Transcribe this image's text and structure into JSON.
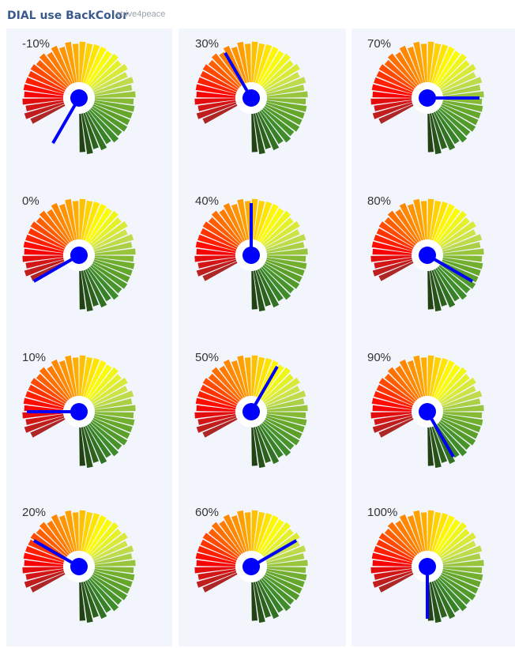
{
  "title": "DIAL use BackColor",
  "watermark": "strive4peace",
  "colors": {
    "needle": "#0000ff",
    "hub": "#0000ff",
    "center": "#ffffff",
    "panel_background": "#f2f6fc",
    "title": "#3a5a8c"
  },
  "chart_data": {
    "type": "gauge",
    "title": "DIAL use BackColor",
    "scale": {
      "min": 0,
      "max": 100,
      "unit": "%"
    },
    "arc_colors_from_min_to_max": [
      "#a52a2a",
      "#ff0000",
      "#ff6a00",
      "#ffa500",
      "#ffff00",
      "#c8e050",
      "#6aaa2a",
      "#3a8a2a",
      "#1f3a10"
    ],
    "dials": [
      {
        "label": "-10%",
        "value": -10
      },
      {
        "label": "0%",
        "value": 0
      },
      {
        "label": "10%",
        "value": 10
      },
      {
        "label": "20%",
        "value": 20
      },
      {
        "label": "30%",
        "value": 30
      },
      {
        "label": "40%",
        "value": 40
      },
      {
        "label": "50%",
        "value": 50
      },
      {
        "label": "60%",
        "value": 60
      },
      {
        "label": "70%",
        "value": 70
      },
      {
        "label": "80%",
        "value": 80
      },
      {
        "label": "90%",
        "value": 90
      },
      {
        "label": "100%",
        "value": 100
      }
    ]
  }
}
